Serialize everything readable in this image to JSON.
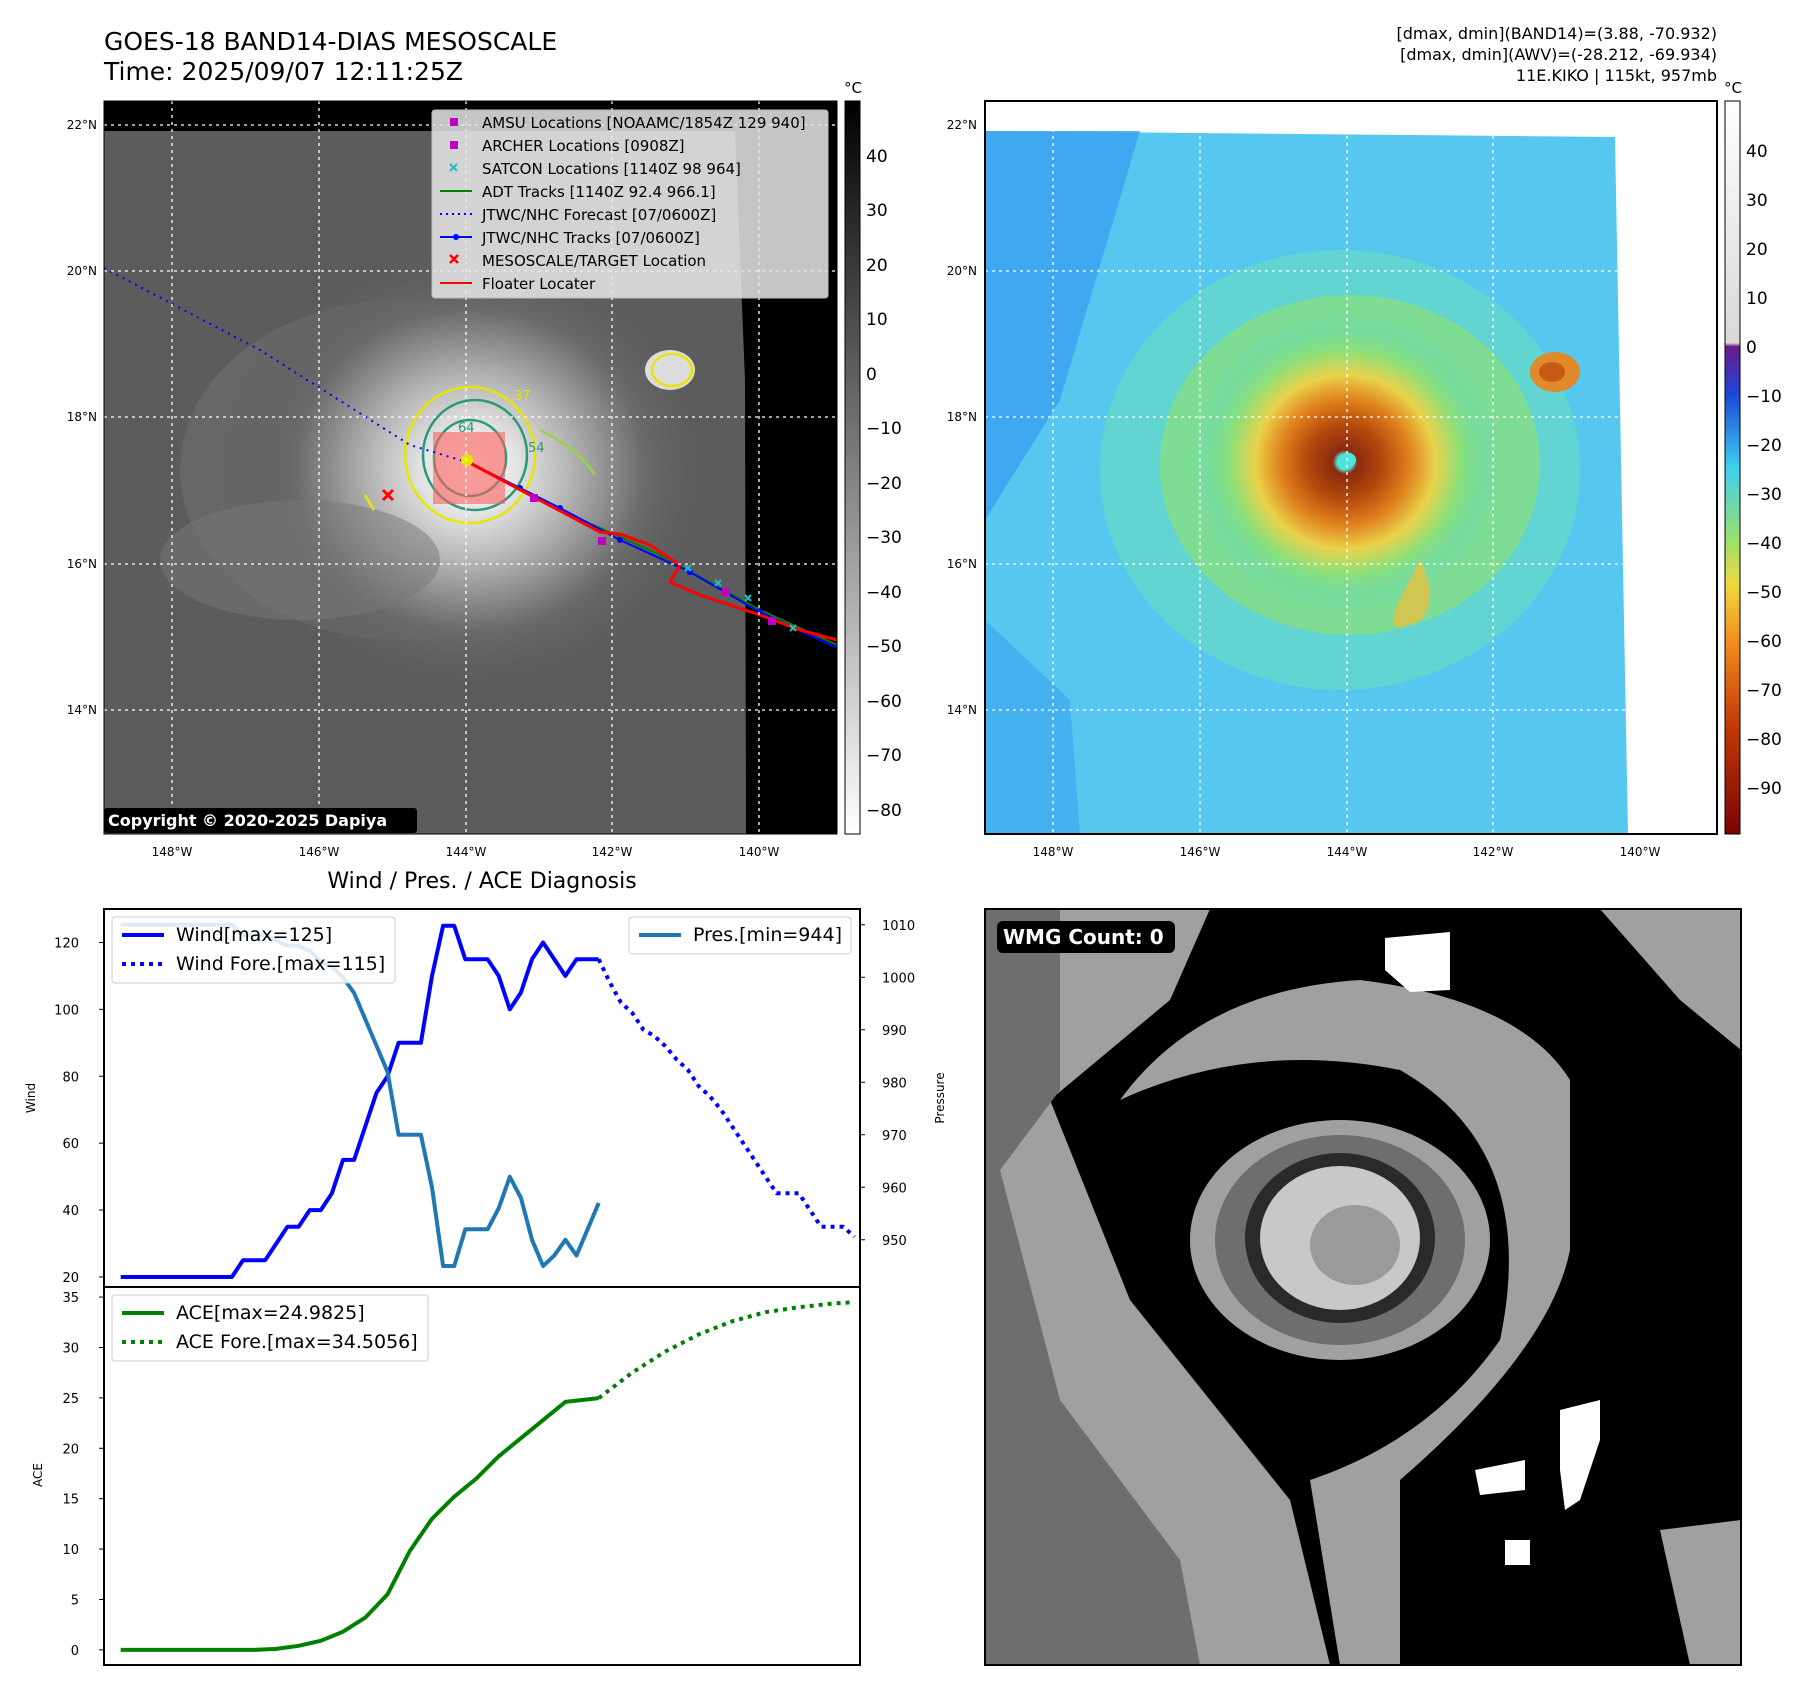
{
  "header": {
    "title": "GOES-18 BAND14-DIAS MESOSCALE",
    "time": "Time: 2025/09/07 12:11:25Z",
    "stats_band14": "[dmax, dmin](BAND14)=(3.88, -70.932)",
    "stats_awv": "[dmax, dmin](AWV)=(-28.212, -69.934)",
    "storm": "11E.KIKO | 115kt, 957mb"
  },
  "map": {
    "lat_labels": [
      "22°N",
      "20°N",
      "18°N",
      "16°N",
      "14°N"
    ],
    "lon_labels": [
      "148°W",
      "146°W",
      "144°W",
      "142°W",
      "140°W"
    ],
    "copyright": "Copyright © 2020-2025 Dapiya",
    "contour_labels": [
      "37",
      "54",
      "64"
    ],
    "legend": [
      {
        "label": "AMSU Locations [NOAAMC/1854Z 129 940]",
        "marker": "square",
        "color": "#c000c0"
      },
      {
        "label": "ARCHER Locations [0908Z]",
        "marker": "square",
        "color": "#c000c0"
      },
      {
        "label": "SATCON Locations [1140Z 98 964]",
        "marker": "x",
        "color": "#20c0c0"
      },
      {
        "label": "ADT Tracks [1140Z 92.4 966.1]",
        "marker": "line",
        "color": "#008000"
      },
      {
        "label": "JTWC/NHC Forecast [07/0600Z]",
        "marker": "dotted",
        "color": "#0000ff"
      },
      {
        "label": "JTWC/NHC Tracks [07/0600Z]",
        "marker": "line-dot",
        "color": "#0000ff"
      },
      {
        "label": "MESOSCALE/TARGET Location",
        "marker": "x",
        "color": "#ff0000"
      },
      {
        "label": "Floater Locater",
        "marker": "line",
        "color": "#ff0000"
      }
    ]
  },
  "colorbar_gray": {
    "unit": "°C",
    "ticks": [
      "40",
      "30",
      "20",
      "10",
      "0",
      "−10",
      "−20",
      "−30",
      "−40",
      "−50",
      "−60",
      "−70",
      "−80"
    ]
  },
  "colorbar_color": {
    "unit": "°C",
    "ticks": [
      "40",
      "30",
      "20",
      "10",
      "0",
      "−10",
      "−20",
      "−30",
      "−40",
      "−50",
      "−60",
      "−70",
      "−80",
      "−90"
    ]
  },
  "wmg": {
    "label": "WMG Count: 0"
  },
  "chart_data": [
    {
      "type": "line",
      "title": "Wind / Pres. / ACE Diagnosis",
      "ylabel": "Wind",
      "ylabel_right": "Pressure",
      "ylim": [
        17,
        130
      ],
      "ylim_right": [
        941,
        1013
      ],
      "yticks": [
        "20",
        "40",
        "60",
        "80",
        "100",
        "120"
      ],
      "yticks_right": [
        "950",
        "960",
        "970",
        "980",
        "990",
        "1000",
        "1010"
      ],
      "x": [
        0,
        1,
        2,
        3,
        4,
        5,
        6,
        7,
        8,
        9,
        10,
        11,
        12,
        13,
        14,
        15,
        16,
        17,
        18,
        19,
        20,
        21,
        22,
        23,
        24,
        25,
        26,
        27,
        28,
        29,
        30,
        31,
        32,
        33,
        34,
        35,
        36,
        37,
        38,
        39,
        40,
        41,
        42,
        43
      ],
      "series": [
        {
          "name": "Wind[max=125]",
          "color": "#0000ff",
          "style": "solid",
          "x": [
            0,
            2,
            4,
            6,
            8,
            10,
            11,
            12,
            13,
            14,
            15,
            16,
            17,
            18,
            19,
            20,
            21,
            22,
            23,
            24,
            25,
            26,
            27,
            28,
            29,
            30,
            31,
            32,
            33,
            34,
            35,
            36,
            37,
            38,
            39,
            40,
            41,
            42,
            43
          ],
          "values": [
            20,
            20,
            20,
            20,
            20,
            20,
            25,
            25,
            25,
            30,
            35,
            35,
            40,
            40,
            45,
            55,
            55,
            65,
            75,
            80,
            90,
            90,
            90,
            110,
            125,
            125,
            115,
            115,
            115,
            110,
            100,
            105,
            115,
            120,
            115,
            110,
            115,
            115,
            115
          ]
        },
        {
          "name": "Wind Fore.[max=115]",
          "color": "#0000ff",
          "style": "dotted",
          "x": [
            43,
            44,
            45,
            46,
            47,
            48,
            49,
            50,
            51,
            52,
            53,
            54,
            55,
            56,
            57,
            58,
            59,
            60,
            61,
            62,
            63,
            64,
            65,
            66
          ],
          "values": [
            115,
            108,
            102,
            99,
            94,
            92,
            89,
            85,
            82,
            77,
            74,
            70,
            65,
            60,
            55,
            50,
            45,
            45,
            45,
            40,
            35,
            35,
            35,
            32
          ]
        },
        {
          "name": "Pres.[min=944]",
          "color": "#1f77b4",
          "style": "solid",
          "axis": "right",
          "x": [
            0,
            2,
            4,
            6,
            8,
            10,
            11,
            12,
            13,
            14,
            15,
            16,
            17,
            18,
            19,
            20,
            21,
            22,
            23,
            24,
            25,
            26,
            27,
            28,
            29,
            30,
            31,
            32,
            33,
            34,
            35,
            36,
            37,
            38,
            39,
            40,
            41,
            42,
            43
          ],
          "values": [
            1010,
            1010,
            1010,
            1010,
            1010,
            1010,
            1008,
            1008,
            1008,
            1007,
            1006,
            1006,
            1005,
            1003,
            1002,
            1000,
            997,
            992,
            987,
            982,
            970,
            970,
            970,
            960,
            945,
            945,
            952,
            952,
            952,
            956,
            962,
            958,
            950,
            945,
            947,
            950,
            947,
            952,
            957
          ]
        }
      ]
    },
    {
      "type": "line",
      "ylabel": "ACE",
      "ylim": [
        -1.5,
        36
      ],
      "yticks": [
        "0",
        "5",
        "10",
        "15",
        "20",
        "25",
        "30",
        "35"
      ],
      "series": [
        {
          "name": "ACE[max=24.9825]",
          "color": "#008000",
          "style": "solid",
          "x": [
            0,
            2,
            4,
            6,
            8,
            10,
            12,
            14,
            16,
            18,
            20,
            22,
            24,
            26,
            28,
            30,
            32,
            34,
            36,
            38,
            40,
            43
          ],
          "values": [
            0,
            0,
            0,
            0,
            0,
            0,
            0,
            0.1,
            0.4,
            0.9,
            1.8,
            3.2,
            5.5,
            9.8,
            13.0,
            15.2,
            17.0,
            19.2,
            21.0,
            22.8,
            24.6,
            24.98
          ]
        },
        {
          "name": "ACE Fore.[max=34.5056]",
          "color": "#008000",
          "style": "dotted",
          "x": [
            43,
            46,
            49,
            52,
            55,
            58,
            61,
            64,
            66
          ],
          "values": [
            24.98,
            27.5,
            29.6,
            31.3,
            32.6,
            33.5,
            34.0,
            34.35,
            34.5
          ]
        }
      ]
    }
  ]
}
